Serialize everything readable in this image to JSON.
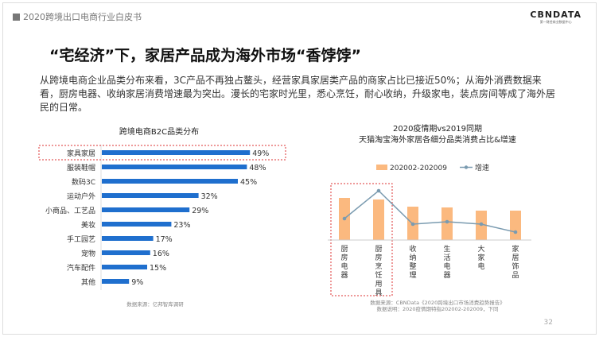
{
  "header": {
    "report_title": "2020跨境出口电商行业白皮书",
    "logo_text": "CBNDATA",
    "logo_sub": "第一财经商业数据中心"
  },
  "slide": {
    "title": "“宅经济”下，家居产品成为海外市场“香饽饽”",
    "paragraph": "从跨境电商企业品类分布来看，3C产品不再独占鳌头，经营家具家居类产品的商家占比已接近50%；从海外消费数据来看，厨房电器、收纳家居消费增速最为突出。漫长的宅家时光里，悉心烹饪，耐心收纳，升级家电，装点房间等成了海外居民的日常。",
    "page_number": "32"
  },
  "chart_data": [
    {
      "type": "bar",
      "orientation": "horizontal",
      "title": "跨境电商B2C品类分布",
      "categories": [
        "家具家居",
        "服装鞋帽",
        "数码3C",
        "运动户外",
        "小商品、工艺品",
        "美妆",
        "手工园艺",
        "宠物",
        "汽车配件",
        "其他"
      ],
      "values": [
        49,
        48,
        45,
        32,
        29,
        23,
        17,
        16,
        15,
        9
      ],
      "labels": [
        "49%",
        "48%",
        "45%",
        "32%",
        "29%",
        "23%",
        "17%",
        "16%",
        "15%",
        "9%"
      ],
      "bar_color": "#1f6fce",
      "highlighted": "家具家居",
      "source": "数据来源：亿邦智库调研"
    },
    {
      "type": "bar+line",
      "title": "2020疫情期vs2019同期",
      "subtitle": "天猫淘宝海外家居各细分品类消费占比&增速",
      "categories": [
        "厨房电器",
        "厨房/烹饪用具",
        "收纳整理",
        "生活电器",
        "大家电",
        "家居饰品"
      ],
      "series": [
        {
          "name": "202002-202009",
          "type": "bar",
          "color": "#fbb97f",
          "values": [
            53,
            51,
            42,
            41,
            37,
            37
          ]
        },
        {
          "name": "增速",
          "type": "line",
          "color": "#7a9bb0",
          "values": [
            27,
            62,
            20,
            23,
            20,
            10
          ]
        }
      ],
      "highlighted": [
        "厨房电器",
        "厨房/烹饪用具"
      ],
      "source": "数据来源：CBNData《2020跨境出口市场消费趋势报告》",
      "note": "数据说明：2020疫情期特指202002-202009，下同"
    }
  ]
}
